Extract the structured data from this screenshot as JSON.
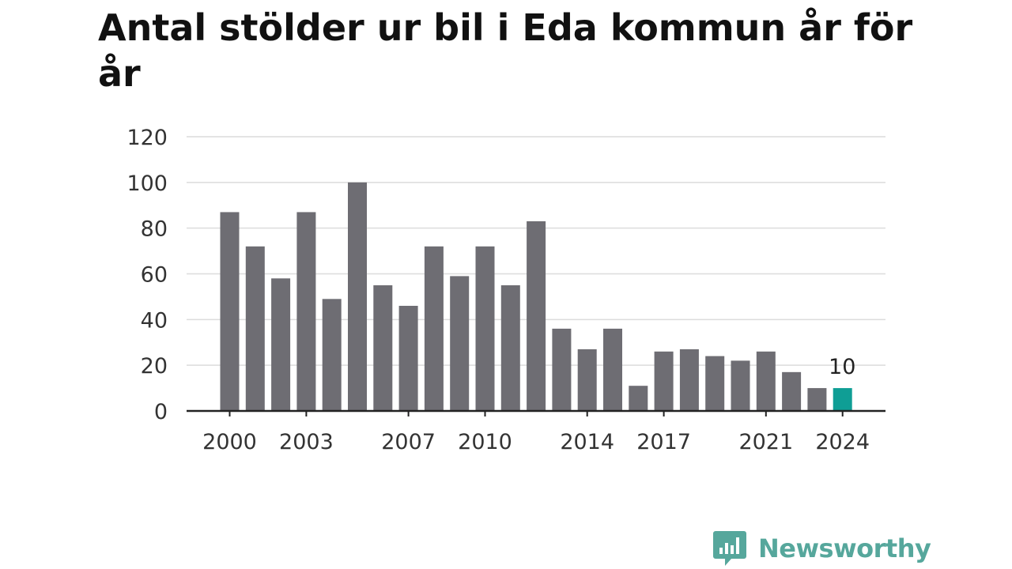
{
  "chart_data": {
    "type": "bar",
    "title": "Antal stölder ur bil i Eda kommun år för år",
    "xlabel": "",
    "ylabel": "",
    "categories": [
      "2000",
      "2001",
      "2002",
      "2003",
      "2004",
      "2005",
      "2006",
      "2007",
      "2008",
      "2009",
      "2010",
      "2011",
      "2012",
      "2013",
      "2014",
      "2015",
      "2016",
      "2017",
      "2018",
      "2019",
      "2020",
      "2021",
      "2022",
      "2023",
      "2024"
    ],
    "values": [
      87,
      72,
      58,
      87,
      49,
      100,
      55,
      46,
      72,
      59,
      72,
      55,
      83,
      36,
      27,
      36,
      11,
      26,
      27,
      24,
      22,
      26,
      17,
      10,
      10
    ],
    "x_tick_labels": [
      "2000",
      "2003",
      "2007",
      "2010",
      "2014",
      "2017",
      "2021",
      "2024"
    ],
    "y_ticks": [
      0,
      20,
      40,
      60,
      80,
      100,
      120
    ],
    "ylim": [
      0,
      120
    ],
    "grid": true,
    "legend": "none",
    "bar_color": "#6e6d73",
    "highlight_color": "#0f9e95",
    "highlight_category": "2024",
    "data_labels": [
      {
        "category": "2024",
        "text": "10"
      }
    ]
  },
  "branding": {
    "logo_text": "Newsworthy",
    "logo_icon": "newsworthy-chart-bubble-icon",
    "logo_color": "#56a79c"
  }
}
